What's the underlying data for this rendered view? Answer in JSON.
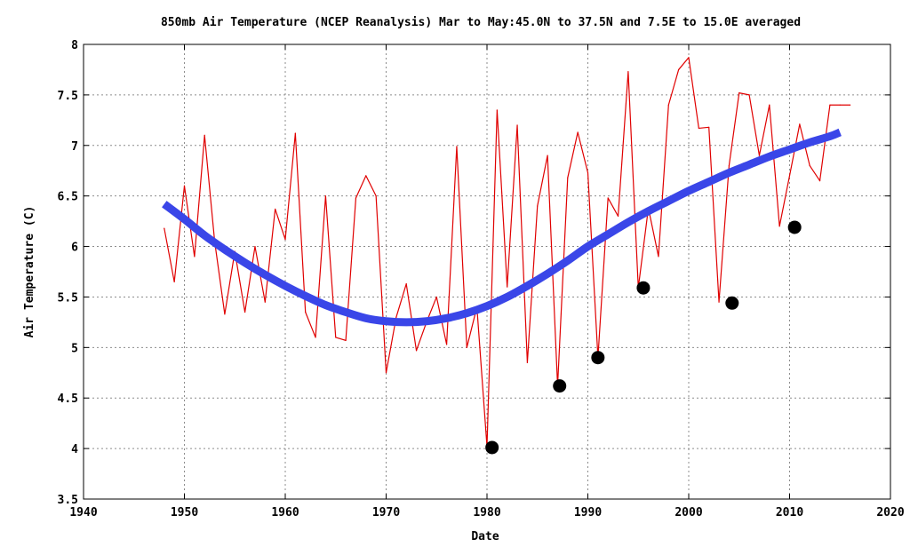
{
  "chart_data": {
    "type": "line",
    "title": "850mb Air Temperature (NCEP Reanalysis) Mar to May:45.0N to 37.5N and 7.5E to 15.0E averaged",
    "xlabel": "Date",
    "ylabel": "Air Temperature (C)",
    "xlim": [
      1940,
      2020
    ],
    "ylim": [
      3.5,
      8
    ],
    "xticks": [
      1940,
      1950,
      1960,
      1970,
      1980,
      1990,
      2000,
      2010,
      2020
    ],
    "yticks": [
      3.5,
      4,
      4.5,
      5,
      5.5,
      6,
      6.5,
      7,
      7.5,
      8
    ],
    "ytick_labels": [
      "3.5",
      "4",
      "4.5",
      "5",
      "5.5",
      "6",
      "6.5",
      "7",
      "7.5",
      "8"
    ],
    "grid": true,
    "legend": "none",
    "series": [
      {
        "style": "line",
        "color": "#e00000",
        "x": [
          1948,
          1949,
          1950,
          1951,
          1952,
          1953,
          1954,
          1955,
          1956,
          1957,
          1958,
          1959,
          1960,
          1961,
          1962,
          1963,
          1964,
          1965,
          1966,
          1967,
          1968,
          1969,
          1970,
          1971,
          1972,
          1973,
          1974,
          1975,
          1976,
          1977,
          1978,
          1979,
          1980,
          1981,
          1982,
          1983,
          1984,
          1985,
          1986,
          1987,
          1988,
          1989,
          1990,
          1991,
          1992,
          1993,
          1994,
          1995,
          1996,
          1997,
          1998,
          1999,
          2000,
          2001,
          2002,
          2003,
          2004,
          2005,
          2006,
          2007,
          2008,
          2009,
          2010,
          2011,
          2012,
          2013,
          2014,
          2015,
          2016
        ],
        "y": [
          6.18,
          5.65,
          6.6,
          5.9,
          7.1,
          6.05,
          5.33,
          5.95,
          5.35,
          6.0,
          5.45,
          6.37,
          6.07,
          7.12,
          5.35,
          5.1,
          6.5,
          5.1,
          5.07,
          6.48,
          6.7,
          6.5,
          4.75,
          5.3,
          5.63,
          4.97,
          5.25,
          5.5,
          5.03,
          6.99,
          5.0,
          5.4,
          4.02,
          7.35,
          5.6,
          7.2,
          4.85,
          6.4,
          6.9,
          4.62,
          6.68,
          7.13,
          6.73,
          4.9,
          6.48,
          6.3,
          7.73,
          5.59,
          6.38,
          5.9,
          7.4,
          7.75,
          7.87,
          7.17,
          7.18,
          5.45,
          6.8,
          7.52,
          7.5,
          6.9,
          7.4,
          6.2,
          6.7,
          7.21,
          6.8,
          6.65,
          7.4,
          7.4,
          7.4
        ]
      },
      {
        "style": "smooth",
        "color": "#3a46e8",
        "x": [
          1948,
          1950,
          1952,
          1954,
          1956,
          1958,
          1960,
          1962,
          1964,
          1966,
          1968,
          1970,
          1972,
          1974,
          1976,
          1978,
          1980,
          1982,
          1984,
          1986,
          1988,
          1990,
          1992,
          1994,
          1996,
          1998,
          2000,
          2002,
          2004,
          2006,
          2008,
          2010,
          2012,
          2014,
          2015
        ],
        "y": [
          6.42,
          6.27,
          6.11,
          5.97,
          5.84,
          5.72,
          5.61,
          5.51,
          5.42,
          5.35,
          5.29,
          5.26,
          5.25,
          5.26,
          5.29,
          5.34,
          5.41,
          5.5,
          5.61,
          5.73,
          5.86,
          6.0,
          6.12,
          6.24,
          6.35,
          6.45,
          6.55,
          6.64,
          6.73,
          6.81,
          6.89,
          6.96,
          7.03,
          7.09,
          7.13
        ]
      },
      {
        "style": "markers",
        "color": "#000000",
        "x": [
          1980.5,
          1987.2,
          1991,
          1995.5,
          2004.3,
          2010.5
        ],
        "y": [
          4.01,
          4.62,
          4.9,
          5.59,
          5.44,
          6.19
        ]
      }
    ]
  }
}
